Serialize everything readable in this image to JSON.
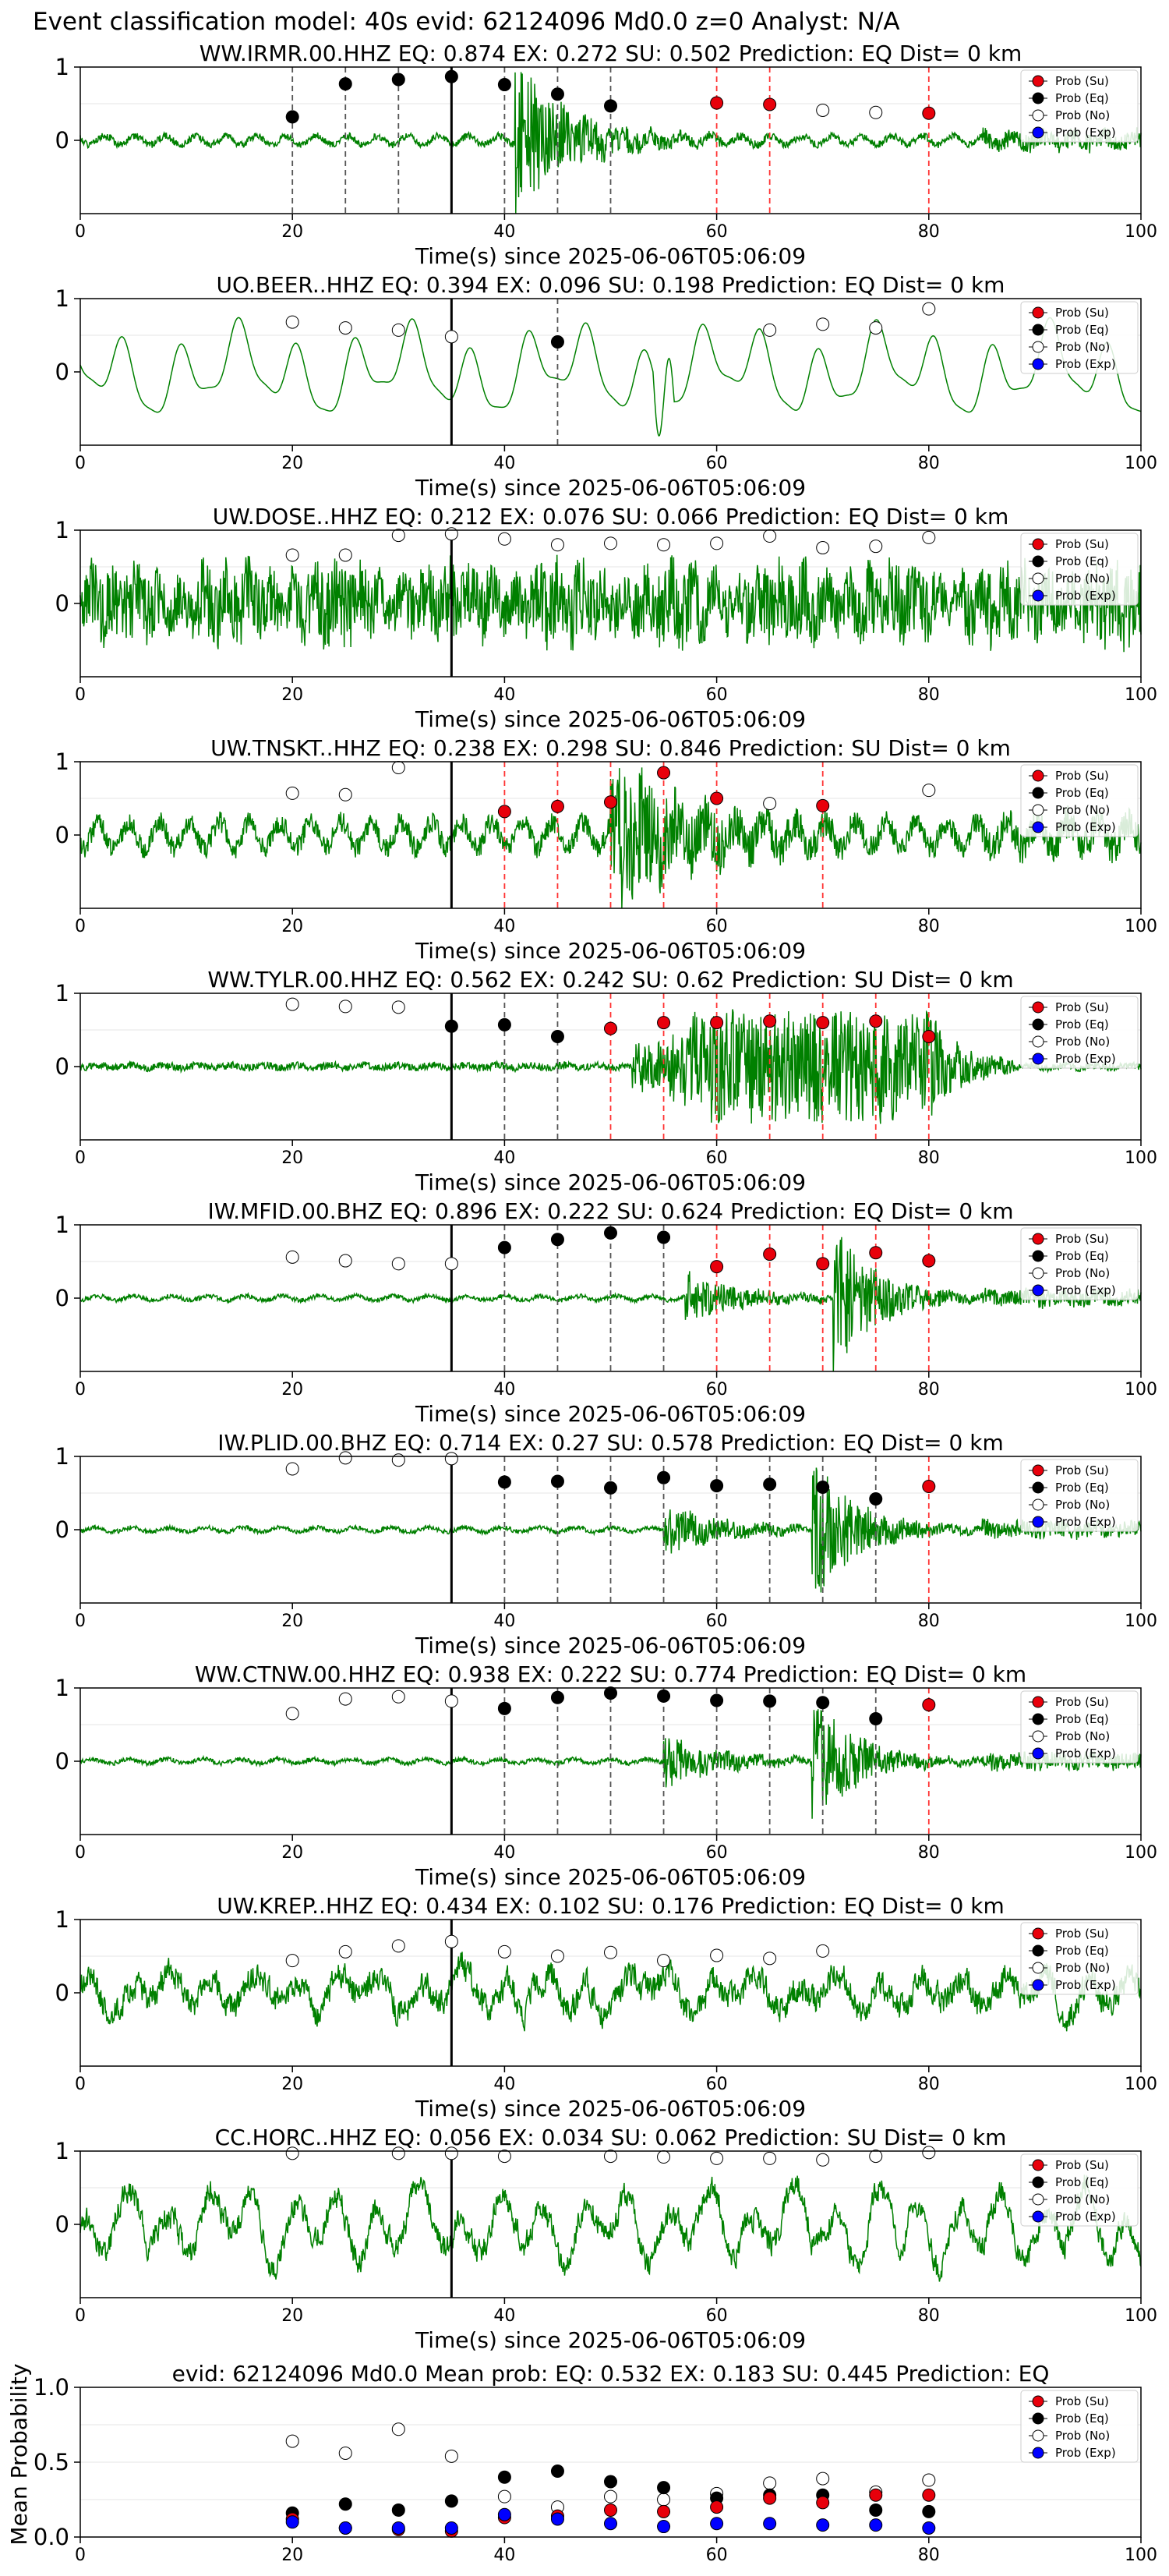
{
  "figure": {
    "title": "Event classification model: 40s evid: 62124096 Md0.0 z=0 Analyst: N/A"
  },
  "legend": [
    "Prob (Su)",
    "Prob (Eq)",
    "Prob (No)",
    "Prob (Exp)"
  ],
  "colors": {
    "trace": "#008000",
    "su": "#e8000b",
    "eq": "#000000",
    "no": "#ffffff",
    "exp": "#0000ff",
    "line_su": "#ff3333",
    "line_eq": "#555555"
  },
  "chart_data": [
    {
      "type": "line+scatter",
      "title": "WW.IRMR.00.HHZ   EQ: 0.874  EX: 0.272  SU: 0.502   Prediction: EQ    Dist= 0 km",
      "xlabel": "Time(s) since 2025-06-06T05:06:09",
      "xlim": [
        0,
        100
      ],
      "ylim": [
        -1,
        1
      ],
      "xticks": [
        "0",
        "20",
        "40",
        "60",
        "80",
        "100"
      ],
      "yticks": [
        "1",
        "0"
      ],
      "pick_time": 35,
      "trace": {
        "amp": 0.75,
        "noise": 0.06,
        "kind": "burst",
        "onset": 41,
        "decay": 5,
        "seed": 1
      },
      "windows": [
        {
          "t": 20,
          "cls": "eq",
          "p": 0.32
        },
        {
          "t": 25,
          "cls": "eq",
          "p": 0.77
        },
        {
          "t": 30,
          "cls": "eq",
          "p": 0.83
        },
        {
          "t": 35,
          "cls": "eq",
          "p": 0.87
        },
        {
          "t": 40,
          "cls": "eq",
          "p": 0.76
        },
        {
          "t": 45,
          "cls": "eq",
          "p": 0.63
        },
        {
          "t": 50,
          "cls": "eq",
          "p": 0.47
        },
        {
          "t": 60,
          "cls": "su",
          "p": 0.51
        },
        {
          "t": 65,
          "cls": "su",
          "p": 0.49
        },
        {
          "t": 70,
          "cls": "no",
          "p": 0.41
        },
        {
          "t": 75,
          "cls": "no",
          "p": 0.38
        },
        {
          "t": 80,
          "cls": "su",
          "p": 0.37
        }
      ]
    },
    {
      "type": "line+scatter",
      "title": "UO.BEER..HHZ   EQ: 0.394  EX: 0.096  SU: 0.198   Prediction: EQ    Dist= 0 km",
      "xlabel": "Time(s) since 2025-06-06T05:06:09",
      "xlim": [
        0,
        100
      ],
      "ylim": [
        -1,
        1
      ],
      "xticks": [
        "0",
        "20",
        "40",
        "60",
        "80",
        "100"
      ],
      "yticks": [
        "1",
        "0"
      ],
      "pick_time": 35,
      "trace": {
        "amp": 0.55,
        "noise": 0.0,
        "kind": "wave",
        "seed": 2
      },
      "windows": [
        {
          "t": 20,
          "cls": "no",
          "p": 0.68
        },
        {
          "t": 25,
          "cls": "no",
          "p": 0.6
        },
        {
          "t": 30,
          "cls": "no",
          "p": 0.57
        },
        {
          "t": 35,
          "cls": "no",
          "p": 0.48
        },
        {
          "t": 45,
          "cls": "eq",
          "p": 0.41
        },
        {
          "t": 65,
          "cls": "no",
          "p": 0.57
        },
        {
          "t": 70,
          "cls": "no",
          "p": 0.65
        },
        {
          "t": 75,
          "cls": "no",
          "p": 0.6
        },
        {
          "t": 80,
          "cls": "no",
          "p": 0.86
        }
      ]
    },
    {
      "type": "line+scatter",
      "title": "UW.DOSE..HHZ   EQ: 0.212  EX: 0.076  SU: 0.066   Prediction: EQ    Dist= 0 km",
      "xlabel": "Time(s) since 2025-06-06T05:06:09",
      "xlim": [
        0,
        100
      ],
      "ylim": [
        -1,
        1
      ],
      "xticks": [
        "0",
        "20",
        "40",
        "60",
        "80",
        "100"
      ],
      "yticks": [
        "1",
        "0"
      ],
      "pick_time": 35,
      "trace": {
        "amp": 0.55,
        "noise": 0.3,
        "kind": "noisy",
        "seed": 3
      },
      "windows": [
        {
          "t": 20,
          "cls": "no",
          "p": 0.66
        },
        {
          "t": 25,
          "cls": "no",
          "p": 0.66
        },
        {
          "t": 30,
          "cls": "no",
          "p": 0.93
        },
        {
          "t": 35,
          "cls": "no",
          "p": 0.95
        },
        {
          "t": 40,
          "cls": "no",
          "p": 0.88
        },
        {
          "t": 45,
          "cls": "no",
          "p": 0.8
        },
        {
          "t": 50,
          "cls": "no",
          "p": 0.82
        },
        {
          "t": 55,
          "cls": "no",
          "p": 0.8
        },
        {
          "t": 60,
          "cls": "no",
          "p": 0.82
        },
        {
          "t": 65,
          "cls": "no",
          "p": 0.92
        },
        {
          "t": 70,
          "cls": "no",
          "p": 0.76
        },
        {
          "t": 75,
          "cls": "no",
          "p": 0.78
        },
        {
          "t": 80,
          "cls": "no",
          "p": 0.9
        }
      ]
    },
    {
      "type": "line+scatter",
      "title": "UW.TNSKT..HHZ   EQ: 0.238  EX: 0.298  SU: 0.846   Prediction: SU    Dist= 0 km",
      "xlabel": "Time(s) since 2025-06-06T05:06:09",
      "xlim": [
        0,
        100
      ],
      "ylim": [
        -1,
        1
      ],
      "xticks": [
        "0",
        "20",
        "40",
        "60",
        "80",
        "100"
      ],
      "yticks": [
        "1",
        "0"
      ],
      "pick_time": 35,
      "trace": {
        "amp": 0.7,
        "noise": 0.18,
        "kind": "burst",
        "onset": 50,
        "decay": 7,
        "seed": 4
      },
      "windows": [
        {
          "t": 20,
          "cls": "no",
          "p": 0.57
        },
        {
          "t": 25,
          "cls": "no",
          "p": 0.55
        },
        {
          "t": 30,
          "cls": "no",
          "p": 0.92
        },
        {
          "t": 40,
          "cls": "su",
          "p": 0.32
        },
        {
          "t": 45,
          "cls": "su",
          "p": 0.39
        },
        {
          "t": 50,
          "cls": "su",
          "p": 0.45
        },
        {
          "t": 55,
          "cls": "su",
          "p": 0.85
        },
        {
          "t": 60,
          "cls": "su",
          "p": 0.5
        },
        {
          "t": 65,
          "cls": "no",
          "p": 0.43
        },
        {
          "t": 70,
          "cls": "su",
          "p": 0.4
        },
        {
          "t": 80,
          "cls": "no",
          "p": 0.61
        }
      ]
    },
    {
      "type": "line+scatter",
      "title": "WW.TYLR.00.HHZ   EQ: 0.562  EX: 0.242  SU: 0.62   Prediction: SU    Dist= 0 km",
      "xlabel": "Time(s) since 2025-06-06T05:06:09",
      "xlim": [
        0,
        100
      ],
      "ylim": [
        -1,
        1
      ],
      "xticks": [
        "0",
        "20",
        "40",
        "60",
        "80",
        "100"
      ],
      "yticks": [
        "1",
        "0"
      ],
      "pick_time": 35,
      "trace": {
        "amp": 0.6,
        "noise": 0.05,
        "kind": "sustain",
        "onset": 55,
        "end": 80,
        "seed": 5
      },
      "windows": [
        {
          "t": 20,
          "cls": "no",
          "p": 0.85
        },
        {
          "t": 25,
          "cls": "no",
          "p": 0.82
        },
        {
          "t": 30,
          "cls": "no",
          "p": 0.81
        },
        {
          "t": 35,
          "cls": "eq",
          "p": 0.55
        },
        {
          "t": 40,
          "cls": "eq",
          "p": 0.57
        },
        {
          "t": 45,
          "cls": "eq",
          "p": 0.41
        },
        {
          "t": 50,
          "cls": "su",
          "p": 0.52
        },
        {
          "t": 55,
          "cls": "su",
          "p": 0.6
        },
        {
          "t": 60,
          "cls": "su",
          "p": 0.6
        },
        {
          "t": 65,
          "cls": "su",
          "p": 0.62
        },
        {
          "t": 70,
          "cls": "su",
          "p": 0.6
        },
        {
          "t": 75,
          "cls": "su",
          "p": 0.62
        },
        {
          "t": 80,
          "cls": "su",
          "p": 0.41
        }
      ]
    },
    {
      "type": "line+scatter",
      "title": "IW.MFID.00.BHZ   EQ: 0.896  EX: 0.222  SU: 0.624   Prediction: EQ    Dist= 0 km",
      "xlabel": "Time(s) since 2025-06-06T05:06:09",
      "xlim": [
        0,
        100
      ],
      "ylim": [
        -1,
        1
      ],
      "xticks": [
        "0",
        "20",
        "40",
        "60",
        "80",
        "100"
      ],
      "yticks": [
        "1",
        "0"
      ],
      "pick_time": 35,
      "trace": {
        "amp": 0.75,
        "noise": 0.03,
        "kind": "double",
        "onset": 57,
        "onset2": 71,
        "decay": 5,
        "seed": 6
      },
      "windows": [
        {
          "t": 20,
          "cls": "no",
          "p": 0.56
        },
        {
          "t": 25,
          "cls": "no",
          "p": 0.51
        },
        {
          "t": 30,
          "cls": "no",
          "p": 0.47
        },
        {
          "t": 35,
          "cls": "no",
          "p": 0.47
        },
        {
          "t": 40,
          "cls": "eq",
          "p": 0.69
        },
        {
          "t": 45,
          "cls": "eq",
          "p": 0.8
        },
        {
          "t": 50,
          "cls": "eq",
          "p": 0.89
        },
        {
          "t": 55,
          "cls": "eq",
          "p": 0.83
        },
        {
          "t": 60,
          "cls": "su",
          "p": 0.43
        },
        {
          "t": 65,
          "cls": "su",
          "p": 0.6
        },
        {
          "t": 70,
          "cls": "su",
          "p": 0.47
        },
        {
          "t": 75,
          "cls": "su",
          "p": 0.62
        },
        {
          "t": 80,
          "cls": "su",
          "p": 0.51
        }
      ]
    },
    {
      "type": "line+scatter",
      "title": "IW.PLID.00.BHZ   EQ: 0.714  EX: 0.27  SU: 0.578   Prediction: EQ    Dist= 0 km",
      "xlabel": "Time(s) since 2025-06-06T05:06:09",
      "xlim": [
        0,
        100
      ],
      "ylim": [
        -1,
        1
      ],
      "xticks": [
        "0",
        "20",
        "40",
        "60",
        "80",
        "100"
      ],
      "yticks": [
        "1",
        "0"
      ],
      "pick_time": 35,
      "trace": {
        "amp": 0.75,
        "noise": 0.03,
        "kind": "double",
        "onset": 55,
        "onset2": 69,
        "decay": 5,
        "seed": 7
      },
      "windows": [
        {
          "t": 20,
          "cls": "no",
          "p": 0.83
        },
        {
          "t": 25,
          "cls": "no",
          "p": 0.98
        },
        {
          "t": 30,
          "cls": "no",
          "p": 0.95
        },
        {
          "t": 35,
          "cls": "no",
          "p": 0.97
        },
        {
          "t": 40,
          "cls": "eq",
          "p": 0.65
        },
        {
          "t": 45,
          "cls": "eq",
          "p": 0.66
        },
        {
          "t": 50,
          "cls": "eq",
          "p": 0.57
        },
        {
          "t": 55,
          "cls": "eq",
          "p": 0.71
        },
        {
          "t": 60,
          "cls": "eq",
          "p": 0.6
        },
        {
          "t": 65,
          "cls": "eq",
          "p": 0.62
        },
        {
          "t": 70,
          "cls": "eq",
          "p": 0.58
        },
        {
          "t": 75,
          "cls": "eq",
          "p": 0.42
        },
        {
          "t": 80,
          "cls": "su",
          "p": 0.59
        }
      ]
    },
    {
      "type": "line+scatter",
      "title": "WW.CTNW.00.HHZ   EQ: 0.938  EX: 0.222  SU: 0.774   Prediction: EQ    Dist= 0 km",
      "xlabel": "Time(s) since 2025-06-06T05:06:09",
      "xlim": [
        0,
        100
      ],
      "ylim": [
        -1,
        1
      ],
      "xticks": [
        "0",
        "20",
        "40",
        "60",
        "80",
        "100"
      ],
      "yticks": [
        "1",
        "0"
      ],
      "pick_time": 35,
      "trace": {
        "amp": 0.7,
        "noise": 0.03,
        "kind": "double",
        "onset": 55,
        "onset2": 69,
        "decay": 5,
        "seed": 8
      },
      "windows": [
        {
          "t": 20,
          "cls": "no",
          "p": 0.65
        },
        {
          "t": 25,
          "cls": "no",
          "p": 0.85
        },
        {
          "t": 30,
          "cls": "no",
          "p": 0.88
        },
        {
          "t": 35,
          "cls": "no",
          "p": 0.82
        },
        {
          "t": 40,
          "cls": "eq",
          "p": 0.72
        },
        {
          "t": 45,
          "cls": "eq",
          "p": 0.87
        },
        {
          "t": 50,
          "cls": "eq",
          "p": 0.93
        },
        {
          "t": 55,
          "cls": "eq",
          "p": 0.89
        },
        {
          "t": 60,
          "cls": "eq",
          "p": 0.83
        },
        {
          "t": 65,
          "cls": "eq",
          "p": 0.82
        },
        {
          "t": 70,
          "cls": "eq",
          "p": 0.8
        },
        {
          "t": 75,
          "cls": "eq",
          "p": 0.58
        },
        {
          "t": 80,
          "cls": "su",
          "p": 0.77
        }
      ]
    },
    {
      "type": "line+scatter",
      "title": "UW.KREP..HHZ   EQ: 0.434  EX: 0.102  SU: 0.176   Prediction: EQ    Dist= 0 km",
      "xlabel": "Time(s) since 2025-06-06T05:06:09",
      "xlim": [
        0,
        100
      ],
      "ylim": [
        -1,
        1
      ],
      "xticks": [
        "0",
        "20",
        "40",
        "60",
        "80",
        "100"
      ],
      "yticks": [
        "1",
        "0"
      ],
      "pick_time": 35,
      "trace": {
        "amp": 0.3,
        "noise": 0.12,
        "kind": "wavy",
        "seed": 9
      },
      "windows": [
        {
          "t": 20,
          "cls": "no",
          "p": 0.44
        },
        {
          "t": 25,
          "cls": "no",
          "p": 0.56
        },
        {
          "t": 30,
          "cls": "no",
          "p": 0.64
        },
        {
          "t": 35,
          "cls": "no",
          "p": 0.7
        },
        {
          "t": 40,
          "cls": "no",
          "p": 0.56
        },
        {
          "t": 45,
          "cls": "no",
          "p": 0.5
        },
        {
          "t": 50,
          "cls": "no",
          "p": 0.55
        },
        {
          "t": 55,
          "cls": "no",
          "p": 0.44
        },
        {
          "t": 60,
          "cls": "no",
          "p": 0.51
        },
        {
          "t": 65,
          "cls": "no",
          "p": 0.47
        },
        {
          "t": 70,
          "cls": "no",
          "p": 0.57
        }
      ]
    },
    {
      "type": "line+scatter",
      "title": "CC.HORC..HHZ   EQ: 0.056  EX: 0.034  SU: 0.062   Prediction: SU    Dist= 0 km",
      "xlabel": "Time(s) since 2025-06-06T05:06:09",
      "xlim": [
        0,
        100
      ],
      "ylim": [
        -1,
        1
      ],
      "xticks": [
        "0",
        "20",
        "40",
        "60",
        "80",
        "100"
      ],
      "yticks": [
        "1",
        "0"
      ],
      "pick_time": 35,
      "trace": {
        "amp": 0.6,
        "noise": 0.1,
        "kind": "wavy",
        "seed": 10
      },
      "windows": [
        {
          "t": 20,
          "cls": "no",
          "p": 0.97
        },
        {
          "t": 30,
          "cls": "no",
          "p": 0.97
        },
        {
          "t": 35,
          "cls": "no",
          "p": 0.97
        },
        {
          "t": 40,
          "cls": "no",
          "p": 0.93
        },
        {
          "t": 50,
          "cls": "no",
          "p": 0.93
        },
        {
          "t": 55,
          "cls": "no",
          "p": 0.92
        },
        {
          "t": 60,
          "cls": "no",
          "p": 0.9
        },
        {
          "t": 65,
          "cls": "no",
          "p": 0.9
        },
        {
          "t": 70,
          "cls": "no",
          "p": 0.88
        },
        {
          "t": 75,
          "cls": "no",
          "p": 0.93
        },
        {
          "t": 80,
          "cls": "no",
          "p": 0.98
        }
      ]
    },
    {
      "type": "scatter",
      "title": "evid: 62124096  Md0.0   Mean prob:   EQ: 0.532  EX: 0.183  SU: 0.445   Prediction: EQ",
      "ylabel": "Mean Probability",
      "xlim": [
        0,
        100
      ],
      "ylim": [
        0,
        1
      ],
      "xticks": [
        "0",
        "20",
        "40",
        "60",
        "80",
        "100"
      ],
      "yticks": [
        "1.0",
        "0.5",
        "0.0"
      ],
      "x": [
        20,
        25,
        30,
        35,
        40,
        45,
        50,
        55,
        60,
        65,
        70,
        75,
        80
      ],
      "series": [
        {
          "name": "Prob (No)",
          "cls": "no",
          "values": [
            0.64,
            0.56,
            0.72,
            0.54,
            0.27,
            0.2,
            0.27,
            0.25,
            0.29,
            0.36,
            0.39,
            0.3,
            0.38
          ]
        },
        {
          "name": "Prob (Eq)",
          "cls": "eq",
          "values": [
            0.16,
            0.22,
            0.18,
            0.24,
            0.4,
            0.44,
            0.37,
            0.33,
            0.26,
            0.28,
            0.28,
            0.18,
            0.17
          ]
        },
        {
          "name": "Prob (Su)",
          "cls": "su",
          "values": [
            0.12,
            0.06,
            0.05,
            0.04,
            0.13,
            0.14,
            0.18,
            0.17,
            0.2,
            0.26,
            0.23,
            0.28,
            0.28
          ]
        },
        {
          "name": "Prob (Exp)",
          "cls": "exp",
          "values": [
            0.1,
            0.06,
            0.06,
            0.06,
            0.15,
            0.12,
            0.09,
            0.07,
            0.09,
            0.09,
            0.08,
            0.08,
            0.06
          ]
        }
      ]
    }
  ]
}
